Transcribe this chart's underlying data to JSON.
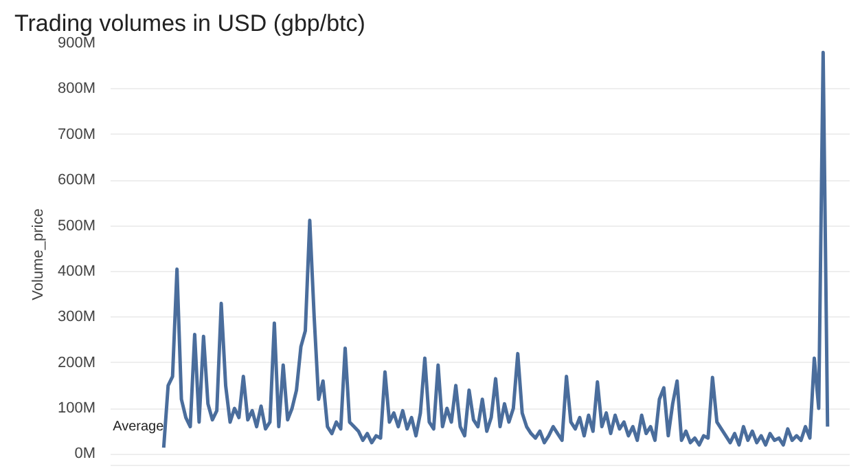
{
  "chart_data": {
    "type": "line",
    "title": "Trading volumes in USD (gbp/btc)",
    "ylabel": "Volume_price",
    "categories": [
      null,
      null,
      null,
      null,
      null,
      null,
      null,
      null,
      null,
      null,
      null,
      null,
      null,
      null,
      null,
      null,
      null,
      null,
      null,
      null,
      null,
      null,
      null,
      null,
      null,
      null,
      null,
      null,
      null,
      null,
      null,
      null,
      null,
      null,
      null,
      null,
      null,
      null,
      null,
      null,
      null,
      null,
      null,
      null,
      null,
      null,
      null,
      null,
      null,
      null,
      null,
      null,
      null,
      null,
      null,
      null,
      null,
      null,
      null,
      null,
      null,
      null,
      null,
      null,
      null,
      null,
      null,
      null,
      null,
      null,
      null,
      null,
      null,
      null,
      null,
      null,
      null,
      null,
      null,
      null,
      null,
      null,
      null,
      null,
      null,
      null,
      null,
      null,
      null,
      null,
      null,
      null,
      null,
      null,
      null,
      null,
      null,
      null,
      null,
      null,
      null,
      null,
      null,
      null,
      null,
      null,
      null,
      null,
      null,
      null,
      null,
      null,
      null,
      null,
      null,
      null,
      null,
      null,
      null,
      null,
      null,
      null,
      null,
      null,
      null,
      null,
      null,
      null,
      null,
      null,
      null,
      null,
      null,
      null,
      null,
      null,
      null,
      null,
      null,
      null,
      null,
      null,
      null,
      null,
      null,
      null,
      null,
      null,
      null,
      null,
      null
    ],
    "series": [
      {
        "color": "#4a6d9c",
        "values": [
          14,
          150,
          170,
          405,
          120,
          80,
          60,
          262,
          70,
          258,
          110,
          75,
          95,
          330,
          150,
          70,
          100,
          80,
          170,
          75,
          95,
          60,
          105,
          55,
          70,
          287,
          60,
          195,
          75,
          100,
          140,
          235,
          270,
          512,
          300,
          120,
          160,
          60,
          45,
          70,
          55,
          232,
          70,
          60,
          50,
          30,
          45,
          25,
          40,
          35,
          180,
          70,
          90,
          60,
          95,
          55,
          80,
          40,
          90,
          210,
          70,
          55,
          195,
          60,
          100,
          70,
          150,
          60,
          40,
          140,
          75,
          60,
          120,
          50,
          80,
          165,
          60,
          110,
          70,
          100,
          220,
          90,
          60,
          45,
          35,
          50,
          25,
          40,
          60,
          45,
          30,
          170,
          70,
          55,
          80,
          40,
          85,
          50,
          158,
          60,
          90,
          45,
          85,
          55,
          70,
          40,
          60,
          30,
          85,
          45,
          60,
          30,
          120,
          145,
          40,
          110,
          160,
          30,
          50,
          25,
          35,
          20,
          40,
          35,
          168,
          70,
          55,
          40,
          25,
          45,
          20,
          60,
          30,
          50,
          25,
          40,
          20,
          45,
          30,
          35,
          20,
          55,
          30,
          40,
          30,
          60,
          35,
          210,
          100,
          880,
          60
        ]
      }
    ],
    "ylim": [
      -25,
      900
    ],
    "yticks": [
      {
        "value": 0,
        "label": "0M"
      },
      {
        "value": 100,
        "label": "100M"
      },
      {
        "value": 200,
        "label": "200M"
      },
      {
        "value": 300,
        "label": "300M"
      },
      {
        "value": 400,
        "label": "400M"
      },
      {
        "value": 500,
        "label": "500M"
      },
      {
        "value": 600,
        "label": "600M"
      },
      {
        "value": 700,
        "label": "700M"
      },
      {
        "value": 800,
        "label": "800M"
      },
      {
        "value": 900,
        "label": "900M"
      }
    ],
    "grid": "y",
    "tick_labels": "y",
    "annotations": [
      "Average"
    ]
  }
}
